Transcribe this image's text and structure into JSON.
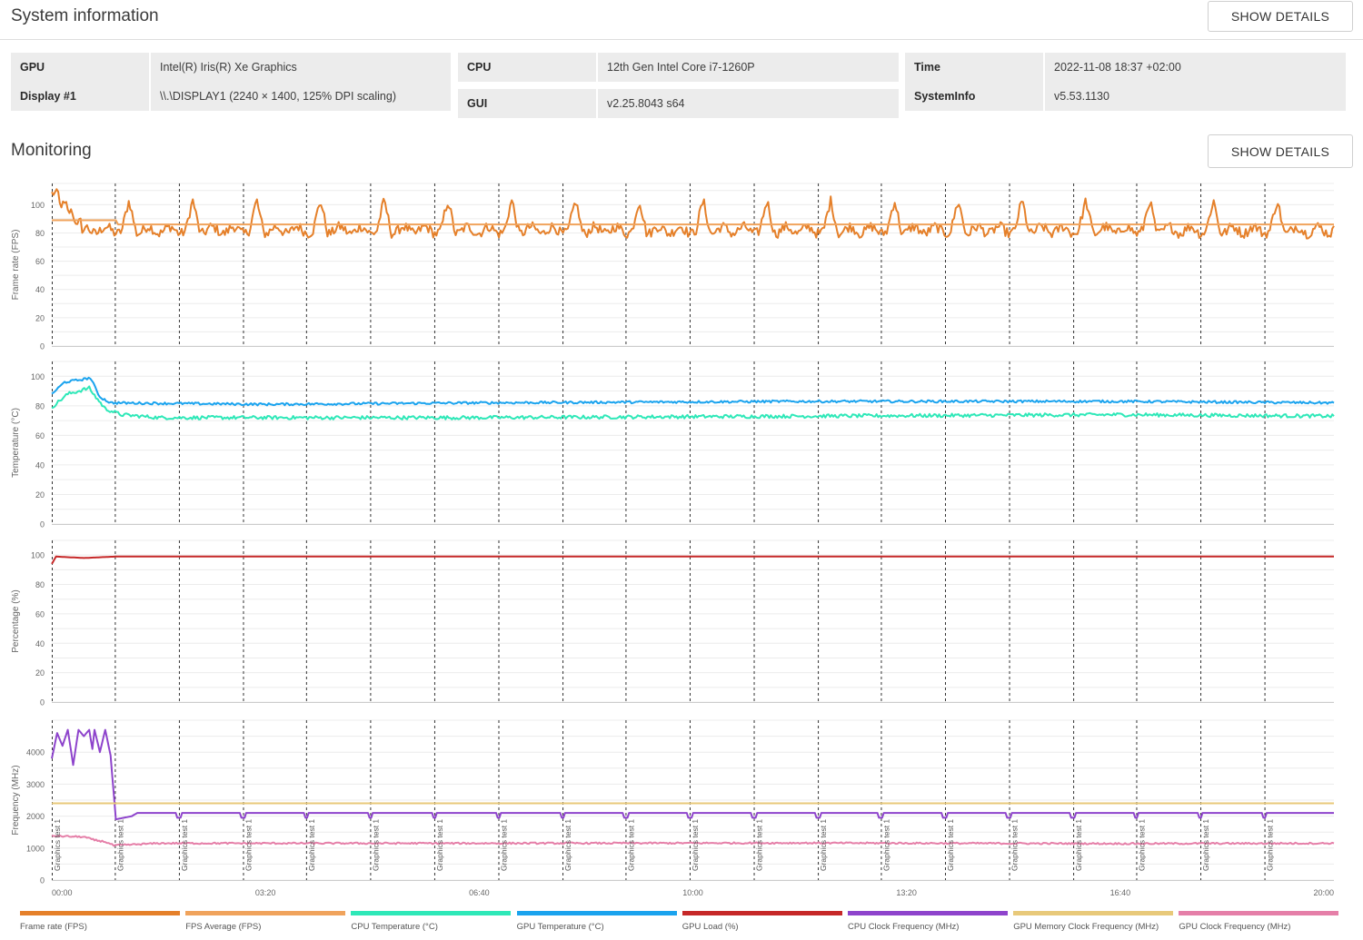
{
  "system_info": {
    "title": "System information",
    "show_details_label": "SHOW DETAILS",
    "rows": [
      {
        "key": "GPU",
        "value": "Intel(R) Iris(R) Xe Graphics"
      },
      {
        "key": "Display #1",
        "value": "\\\\.\\DISPLAY1 (2240 × 1400, 125% DPI scaling)"
      },
      {
        "key": "CPU",
        "value": "12th Gen Intel Core i7-1260P"
      },
      {
        "key": "GUI",
        "value": "v2.25.8043 s64"
      },
      {
        "key": "Time",
        "value": "2022-11-08 18:37 +02:00"
      },
      {
        "key": "SystemInfo",
        "value": "v5.53.1130"
      }
    ]
  },
  "monitoring": {
    "title": "Monitoring",
    "show_details_label": "SHOW DETAILS"
  },
  "chart_data": {
    "type": "line",
    "x_unit": "seconds",
    "x_range": [
      0,
      1200
    ],
    "x_ticks": [
      "00:00",
      "03:20",
      "06:40",
      "10:00",
      "13:20",
      "16:40",
      "20:00"
    ],
    "run_marker_label": "Graphics test 1",
    "run_markers": [
      0,
      59,
      119,
      179,
      238,
      298,
      358,
      418,
      478,
      537,
      597,
      657,
      717,
      776,
      836,
      896,
      956,
      1015,
      1075,
      1135
    ],
    "grid": true,
    "legend_placement": "bottom",
    "series": [
      {
        "name": "Frame rate (FPS)",
        "color": "#e5802a",
        "panel": 0,
        "pattern": {
          "baseline": 82,
          "period": 59.7,
          "peak": 101,
          "peak_at": 0.18,
          "noise": 3.5,
          "start": [
            108,
            100,
            95,
            88,
            78
          ]
        }
      },
      {
        "name": "FPS Average (FPS)",
        "color": "#f0a35c",
        "panel": 0,
        "points": [
          [
            0,
            89
          ],
          [
            60,
            89
          ],
          [
            62,
            86
          ],
          [
            1200,
            86
          ]
        ]
      },
      {
        "name": "CPU Temperature (°C)",
        "color": "#2ee8b8",
        "panel": 1,
        "points": [
          [
            0,
            79
          ],
          [
            15,
            88
          ],
          [
            35,
            92
          ],
          [
            40,
            87
          ],
          [
            50,
            78
          ],
          [
            65,
            74
          ],
          [
            100,
            72
          ],
          [
            400,
            72
          ],
          [
            700,
            73
          ],
          [
            1000,
            74
          ],
          [
            1200,
            73
          ]
        ]
      },
      {
        "name": "GPU Temperature (°C)",
        "color": "#1aa3ee",
        "panel": 1,
        "points": [
          [
            0,
            88
          ],
          [
            12,
            96
          ],
          [
            30,
            98
          ],
          [
            36,
            99
          ],
          [
            45,
            86
          ],
          [
            55,
            82
          ],
          [
            200,
            81
          ],
          [
            400,
            82
          ],
          [
            700,
            83
          ],
          [
            1000,
            83
          ],
          [
            1200,
            82
          ]
        ]
      },
      {
        "name": "GPU Load (%)",
        "color": "#c62828",
        "panel": 2,
        "points": [
          [
            0,
            94
          ],
          [
            4,
            99
          ],
          [
            30,
            98
          ],
          [
            60,
            99
          ],
          [
            1200,
            99
          ]
        ]
      },
      {
        "name": "CPU Clock Frequency (MHz)",
        "color": "#8e44cc",
        "panel": 3,
        "points": [
          [
            0,
            3800
          ],
          [
            5,
            4600
          ],
          [
            10,
            4200
          ],
          [
            15,
            4700
          ],
          [
            20,
            3600
          ],
          [
            25,
            4700
          ],
          [
            30,
            4500
          ],
          [
            35,
            4700
          ],
          [
            38,
            4100
          ],
          [
            40,
            4700
          ],
          [
            45,
            4000
          ],
          [
            50,
            4700
          ],
          [
            55,
            3900
          ],
          [
            60,
            1900
          ],
          [
            75,
            2000
          ],
          [
            80,
            2100
          ],
          [
            1200,
            2100
          ]
        ]
      },
      {
        "name": "GPU Memory Clock Frequency (MHz)",
        "color": "#e8c97a",
        "panel": 3,
        "points": [
          [
            0,
            2400
          ],
          [
            1200,
            2400
          ]
        ]
      },
      {
        "name": "GPU Clock Frequency (MHz)",
        "color": "#e57fa8",
        "panel": 3,
        "points": [
          [
            0,
            1380
          ],
          [
            30,
            1350
          ],
          [
            40,
            1250
          ],
          [
            50,
            1200
          ],
          [
            58,
            1080
          ],
          [
            100,
            1150
          ],
          [
            400,
            1150
          ],
          [
            700,
            1160
          ],
          [
            1000,
            1140
          ],
          [
            1200,
            1150
          ]
        ]
      }
    ],
    "panels": [
      {
        "ylabel": "Frame rate (FPS)",
        "ylim": [
          0,
          115
        ],
        "yticks": [
          0,
          20,
          40,
          60,
          80,
          100
        ]
      },
      {
        "ylabel": "Temperature (°C)",
        "ylim": [
          0,
          110
        ],
        "yticks": [
          0,
          20,
          40,
          60,
          80,
          100
        ]
      },
      {
        "ylabel": "Percentage (%)",
        "ylim": [
          0,
          110
        ],
        "yticks": [
          0,
          20,
          40,
          60,
          80,
          100
        ]
      },
      {
        "ylabel": "Frequency (MHz)",
        "ylim": [
          0,
          5000
        ],
        "yticks": [
          0,
          1000,
          2000,
          3000,
          4000
        ]
      }
    ]
  }
}
